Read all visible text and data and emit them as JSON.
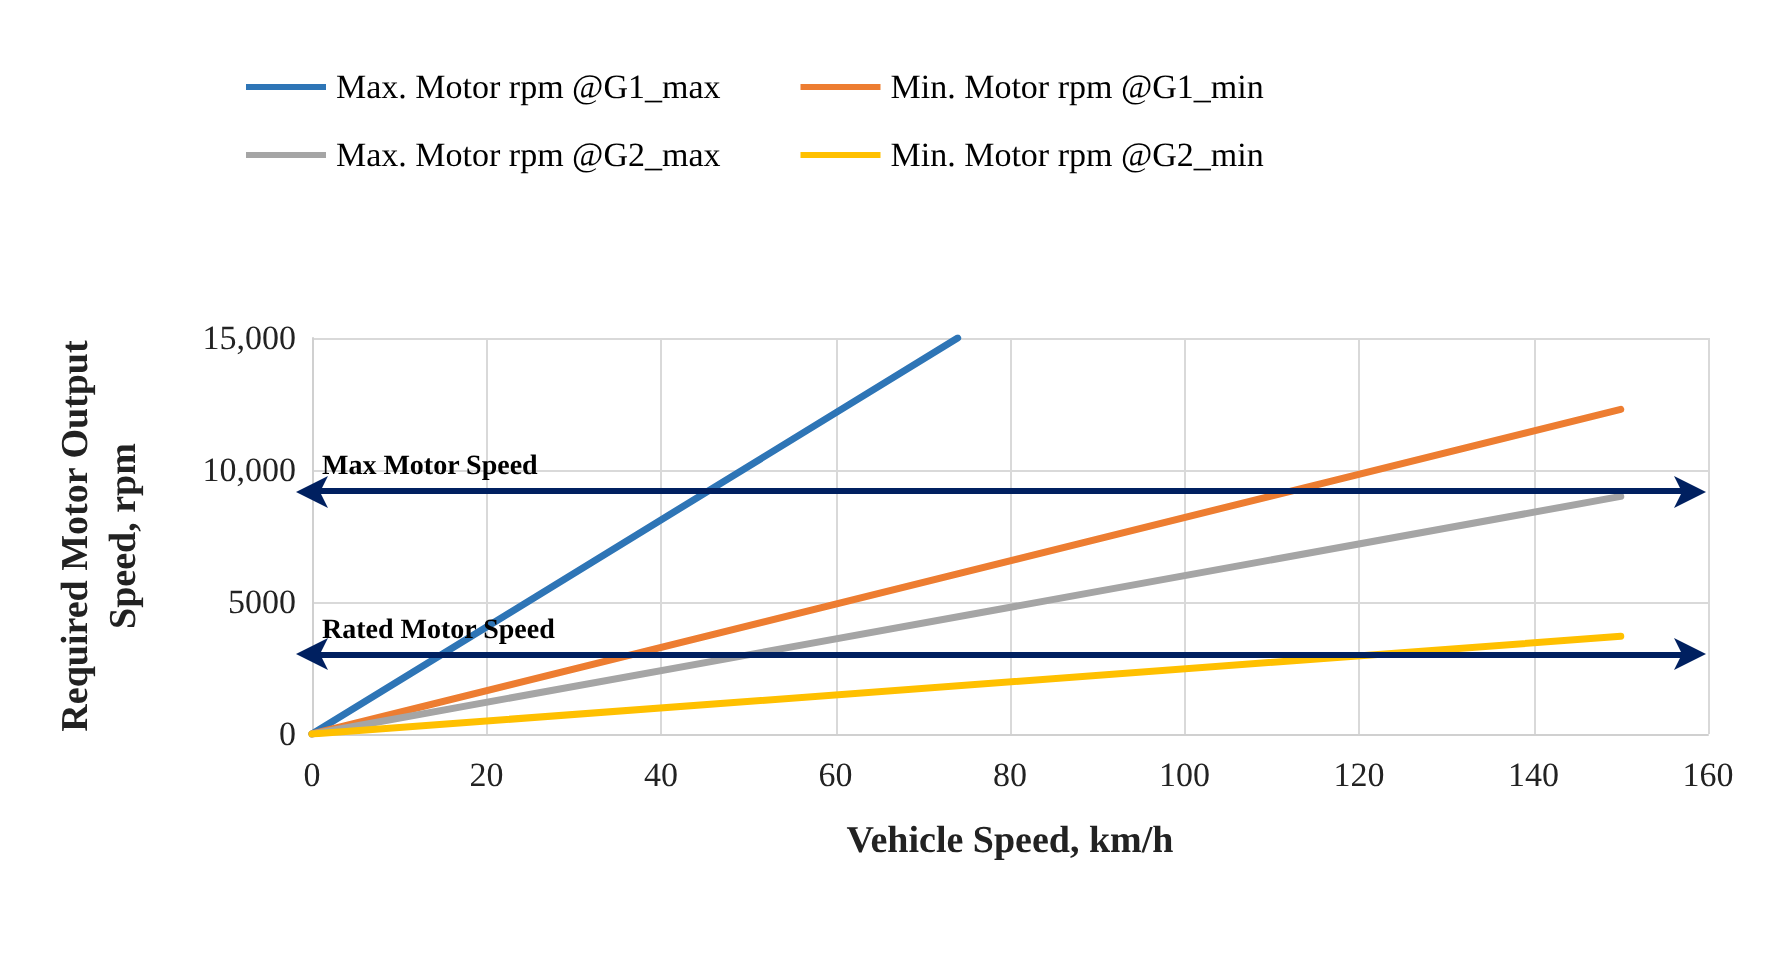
{
  "chart_data": {
    "type": "line",
    "xlabel": "Vehicle Speed, km/h",
    "ylabel": "Required Motor Output\nSpeed, rpm",
    "xlim": [
      0,
      160
    ],
    "xticks": [
      0,
      20,
      40,
      60,
      80,
      100,
      120,
      140,
      160
    ],
    "ylim": [
      0,
      15000
    ],
    "yticks": [
      0,
      5000,
      {
        "value": 10000,
        "label": "10,000"
      },
      {
        "value": 15000,
        "label": "15,000"
      }
    ],
    "grid": true,
    "legend": "top",
    "marker": "none",
    "line_style": "solid",
    "series": [
      {
        "name": "Max. Motor rpm @G1_max",
        "color": "#2e75b6",
        "x": [
          0,
          74
        ],
        "values": [
          0,
          15000
        ]
      },
      {
        "name": "Min. Motor rpm @G1_min",
        "color": "#ed7d31",
        "x": [
          0,
          150
        ],
        "values": [
          0,
          12300
        ]
      },
      {
        "name": "Max. Motor rpm @G2_max",
        "color": "#a5a5a5",
        "x": [
          0,
          150
        ],
        "values": [
          0,
          9000
        ]
      },
      {
        "name": "Min. Motor rpm @G2_min",
        "color": "#ffc000",
        "x": [
          0,
          150
        ],
        "values": [
          0,
          3700
        ]
      }
    ],
    "ref_lines": [
      {
        "axis": "y",
        "value": 9200,
        "label": "Max Motor Speed",
        "color": "#002060"
      },
      {
        "axis": "y",
        "value": 3000,
        "label": "Rated Motor Speed",
        "color": "#002060"
      }
    ]
  }
}
